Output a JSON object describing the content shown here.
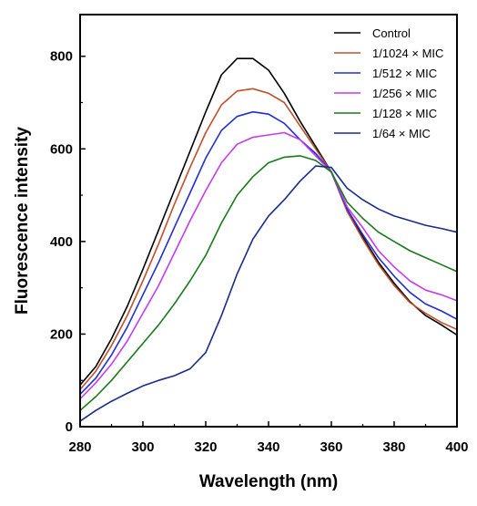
{
  "chart_data": {
    "type": "line",
    "xlabel": "Wavelength (nm)",
    "ylabel": "Fluorescence intensity",
    "xlim": [
      280,
      400
    ],
    "ylim": [
      0,
      890
    ],
    "x_ticks": [
      280,
      300,
      320,
      340,
      360,
      380,
      400
    ],
    "y_ticks": [
      0,
      200,
      400,
      600,
      800
    ],
    "grid": false,
    "legend_position": "top-right",
    "x": [
      280,
      285,
      290,
      295,
      300,
      305,
      310,
      315,
      320,
      325,
      330,
      335,
      340,
      345,
      350,
      355,
      360,
      365,
      370,
      375,
      380,
      385,
      390,
      395,
      400
    ],
    "series": [
      {
        "name": "Control",
        "color": "#000000",
        "values": [
          90,
          130,
          190,
          260,
          340,
          425,
          510,
          595,
          680,
          760,
          795,
          795,
          770,
          720,
          660,
          605,
          550,
          470,
          410,
          355,
          310,
          270,
          240,
          220,
          198
        ]
      },
      {
        "name": "1/1024 × MIC",
        "color": "#c0502a",
        "values": [
          80,
          120,
          175,
          240,
          315,
          395,
          480,
          560,
          635,
          695,
          725,
          730,
          720,
          700,
          650,
          600,
          550,
          465,
          405,
          350,
          305,
          268,
          245,
          225,
          210
        ]
      },
      {
        "name": "1/512 × MIC",
        "color": "#1f2fd6",
        "values": [
          70,
          105,
          155,
          215,
          285,
          355,
          430,
          505,
          580,
          640,
          670,
          680,
          675,
          655,
          620,
          590,
          550,
          470,
          415,
          365,
          325,
          290,
          265,
          250,
          232
        ]
      },
      {
        "name": "1/256 × MIC",
        "color": "#c43cf0",
        "values": [
          60,
          95,
          135,
          185,
          245,
          305,
          375,
          445,
          510,
          570,
          610,
          625,
          630,
          635,
          620,
          585,
          550,
          475,
          430,
          380,
          345,
          315,
          295,
          285,
          272
        ]
      },
      {
        "name": "1/128 × MIC",
        "color": "#1a7a1a",
        "values": [
          35,
          65,
          100,
          140,
          180,
          220,
          265,
          315,
          370,
          440,
          500,
          540,
          570,
          582,
          585,
          575,
          550,
          485,
          450,
          420,
          400,
          380,
          365,
          350,
          335
        ]
      },
      {
        "name": "1/64 × MIC",
        "color": "#1a2a8c",
        "values": [
          12,
          35,
          55,
          72,
          88,
          100,
          110,
          125,
          160,
          240,
          330,
          405,
          455,
          490,
          530,
          563,
          560,
          515,
          490,
          470,
          455,
          445,
          435,
          428,
          420
        ]
      }
    ]
  }
}
